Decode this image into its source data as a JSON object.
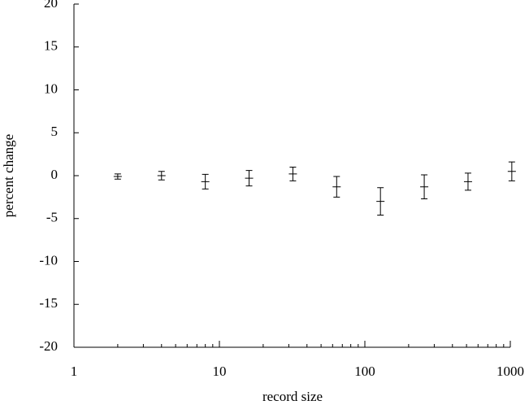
{
  "chart_data": {
    "type": "errorbar",
    "x_label": "record size",
    "y_label": "percent change",
    "x": [
      2,
      4,
      8,
      16,
      32,
      64,
      128,
      256,
      512,
      1024
    ],
    "values": [
      -0.1,
      0,
      -0.7,
      -0.3,
      0.2,
      -1.3,
      -3,
      -1.3,
      -0.7,
      0.5
    ],
    "errors": [
      0.3,
      0.5,
      0.85,
      0.9,
      0.8,
      1.2,
      1.6,
      1.4,
      1,
      1.1
    ],
    "color": "#000000",
    "xscale": "log",
    "xlim": [
      1,
      1000
    ],
    "xticks": [
      1,
      10,
      100,
      1000
    ],
    "xminorticks": [
      2,
      3,
      4,
      5,
      6,
      7,
      8,
      9,
      20,
      30,
      40,
      50,
      60,
      70,
      80,
      90,
      200,
      300,
      400,
      500,
      600,
      700,
      800,
      900
    ],
    "ylim": [
      -20,
      20
    ],
    "yticks": [
      -20,
      -15,
      -10,
      -5,
      0,
      5,
      10,
      15,
      20
    ]
  }
}
